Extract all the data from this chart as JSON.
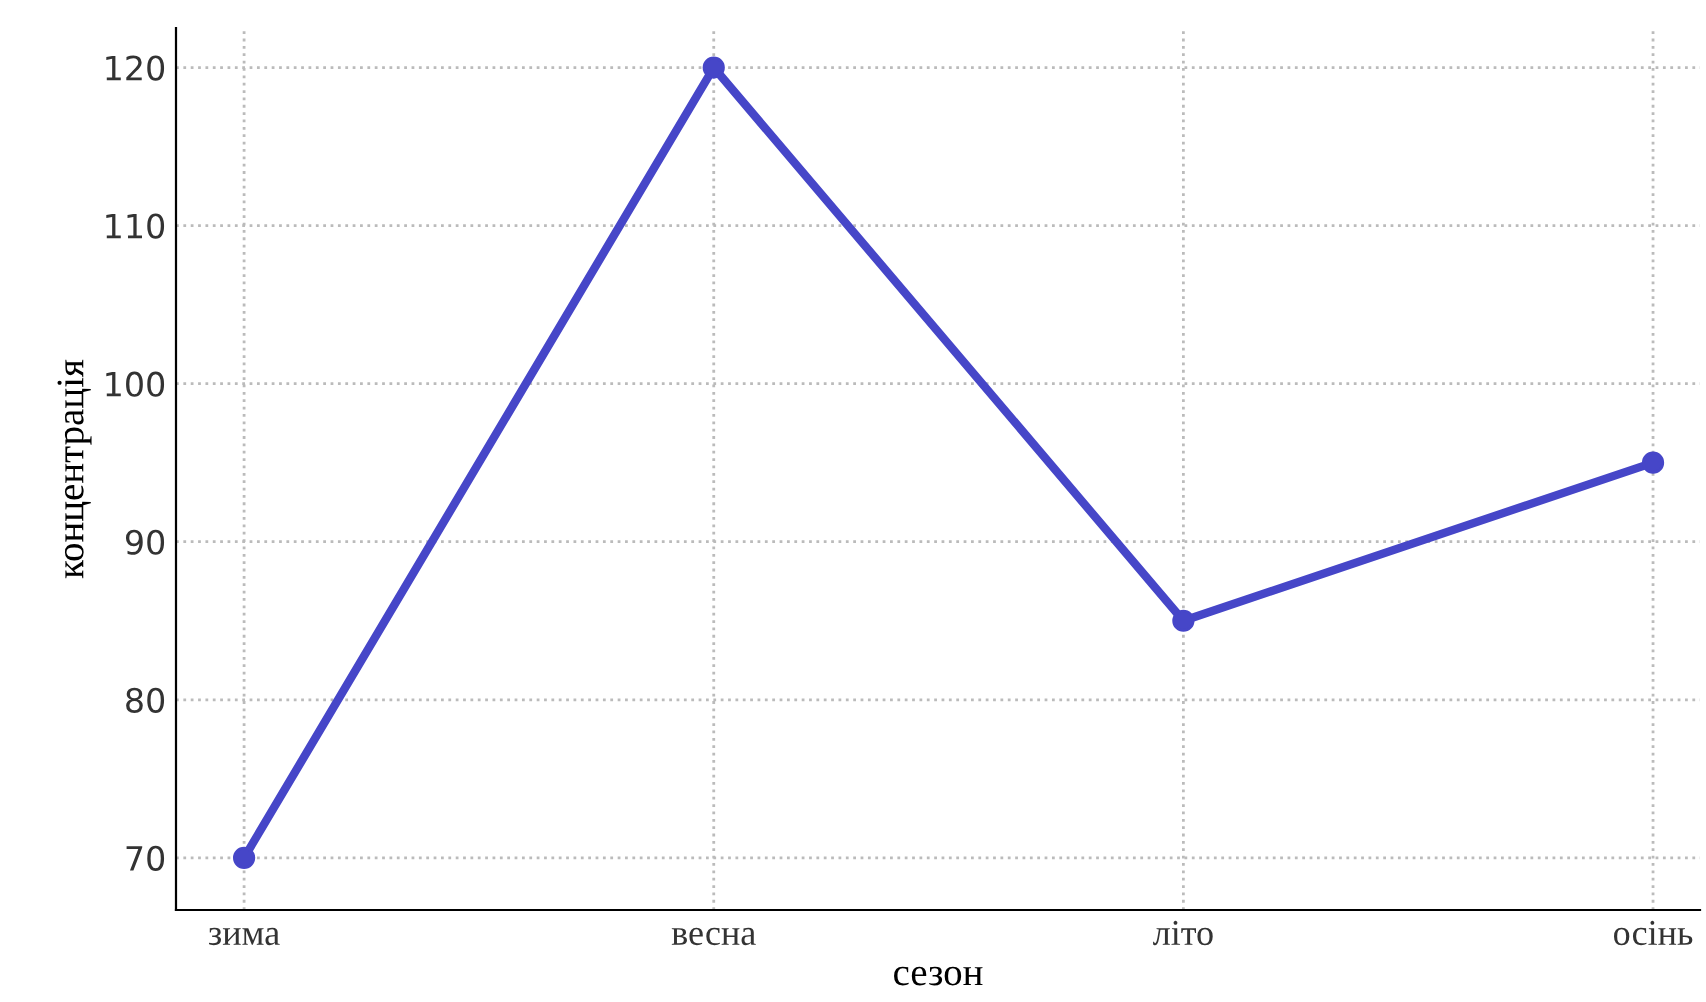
{
  "chart_data": {
    "type": "line",
    "xlabel": "сезон",
    "ylabel": "концентрація",
    "categories": [
      "зима",
      "весна",
      "літо",
      "осінь"
    ],
    "series": [
      {
        "color": "#4646c8",
        "values": [
          70,
          120,
          85,
          95
        ]
      }
    ],
    "ylim": [
      66.7,
      122.5
    ],
    "yticks": [
      70,
      80,
      90,
      100,
      110,
      120
    ],
    "grid": true,
    "marker": "circle",
    "line_style": "solid"
  }
}
